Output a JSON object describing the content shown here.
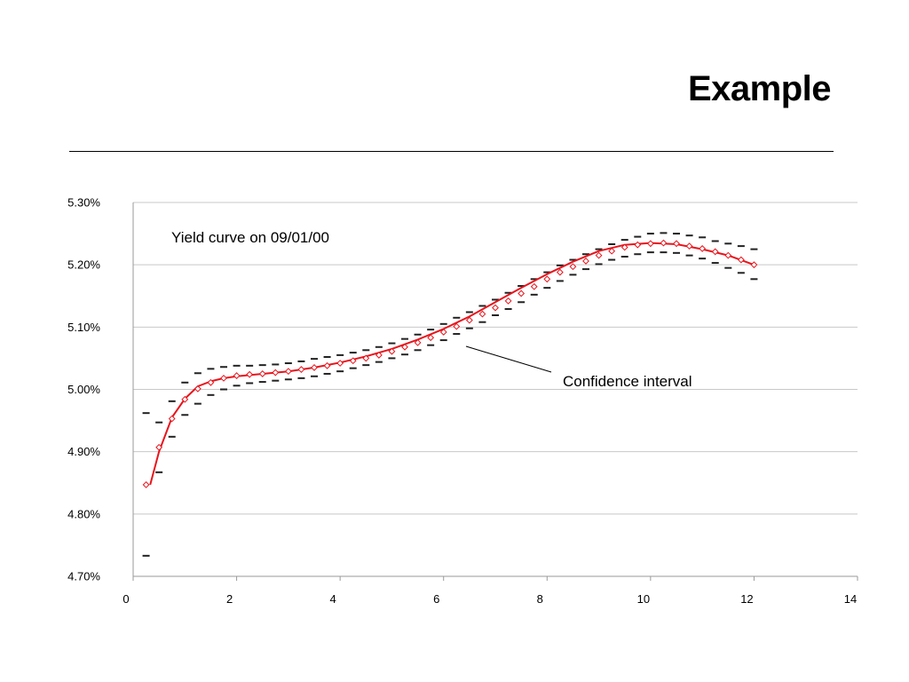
{
  "slide": {
    "title": "Example"
  },
  "chart_data": {
    "type": "scatter",
    "title": "",
    "xlabel": "",
    "ylabel": "",
    "xlim": [
      0,
      14
    ],
    "ylim": [
      4.7,
      5.3
    ],
    "x_ticks": [
      0,
      2,
      4,
      6,
      8,
      10,
      12,
      14
    ],
    "y_ticks": [
      4.7,
      4.8,
      4.9,
      5.0,
      5.1,
      5.2,
      5.3
    ],
    "y_tick_labels": [
      "4.70%",
      "4.80%",
      "4.90%",
      "5.00%",
      "5.10%",
      "5.20%",
      "5.30%"
    ],
    "grid": "horizontal",
    "annotations": {
      "curve_label": "Yield curve on 09/01/00",
      "interval_label": "Confidence interval"
    },
    "colors": {
      "fitted_curve": "#e8141c",
      "observed_points": "#e8141c",
      "bounds": "#222222",
      "grid": "#c8c8c8"
    },
    "series": [
      {
        "role": "fitted_curve",
        "x": [
          0.33,
          0.5,
          0.75,
          1.0,
          1.25,
          1.5,
          1.75,
          2.0,
          2.5,
          3.0,
          3.5,
          4.0,
          4.5,
          5.0,
          5.5,
          6.0,
          6.5,
          7.0,
          7.5,
          8.0,
          8.5,
          9.0,
          9.5,
          10.0,
          10.5,
          11.0,
          11.5,
          12.0
        ],
        "y": [
          4.847,
          4.9,
          4.955,
          4.985,
          5.005,
          5.013,
          5.018,
          5.021,
          5.025,
          5.029,
          5.035,
          5.043,
          5.053,
          5.065,
          5.08,
          5.097,
          5.117,
          5.14,
          5.163,
          5.185,
          5.205,
          5.222,
          5.232,
          5.235,
          5.233,
          5.225,
          5.215,
          5.2
        ]
      },
      {
        "role": "observed_points",
        "x": [
          0.25,
          0.5,
          0.75,
          1.0,
          1.25,
          1.5,
          1.75,
          2.0,
          2.25,
          2.5,
          2.75,
          3.0,
          3.25,
          3.5,
          3.75,
          4.0,
          4.25,
          4.5,
          4.75,
          5.0,
          5.25,
          5.5,
          5.75,
          6.0,
          6.25,
          6.5,
          6.75,
          7.0,
          7.25,
          7.5,
          7.75,
          8.0,
          8.25,
          8.5,
          8.75,
          9.0,
          9.25,
          9.5,
          9.75,
          10.0,
          10.25,
          10.5,
          10.75,
          11.0,
          11.25,
          11.5,
          11.75,
          12.0
        ],
        "y": [
          4.847,
          4.907,
          4.953,
          4.984,
          5.001,
          5.011,
          5.018,
          5.022,
          5.024,
          5.025,
          5.027,
          5.029,
          5.032,
          5.035,
          5.038,
          5.042,
          5.046,
          5.05,
          5.055,
          5.061,
          5.068,
          5.075,
          5.083,
          5.092,
          5.101,
          5.111,
          5.121,
          5.131,
          5.142,
          5.154,
          5.165,
          5.177,
          5.188,
          5.197,
          5.206,
          5.215,
          5.222,
          5.228,
          5.232,
          5.234,
          5.235,
          5.234,
          5.23,
          5.226,
          5.221,
          5.215,
          5.208,
          5.2
        ]
      },
      {
        "role": "upper_bound",
        "x": [
          0.25,
          0.5,
          0.75,
          1.0,
          1.25,
          1.5,
          1.75,
          2.0,
          2.25,
          2.5,
          2.75,
          3.0,
          3.25,
          3.5,
          3.75,
          4.0,
          4.25,
          4.5,
          4.75,
          5.0,
          5.25,
          5.5,
          5.75,
          6.0,
          6.25,
          6.5,
          6.75,
          7.0,
          7.25,
          7.5,
          7.75,
          8.0,
          8.25,
          8.5,
          8.75,
          9.0,
          9.25,
          9.5,
          9.75,
          10.0,
          10.25,
          10.5,
          10.75,
          11.0,
          11.25,
          11.5,
          11.75,
          12.0
        ],
        "y": [
          4.962,
          4.947,
          4.981,
          5.011,
          5.026,
          5.033,
          5.036,
          5.038,
          5.038,
          5.039,
          5.04,
          5.042,
          5.045,
          5.049,
          5.052,
          5.055,
          5.059,
          5.063,
          5.068,
          5.074,
          5.081,
          5.088,
          5.096,
          5.105,
          5.115,
          5.124,
          5.134,
          5.144,
          5.155,
          5.166,
          5.177,
          5.188,
          5.199,
          5.208,
          5.217,
          5.225,
          5.233,
          5.24,
          5.245,
          5.25,
          5.251,
          5.25,
          5.247,
          5.244,
          5.238,
          5.234,
          5.23,
          5.225
        ]
      },
      {
        "role": "lower_bound",
        "x": [
          0.25,
          0.5,
          0.75,
          1.0,
          1.25,
          1.5,
          1.75,
          2.0,
          2.25,
          2.5,
          2.75,
          3.0,
          3.25,
          3.5,
          3.75,
          4.0,
          4.25,
          4.5,
          4.75,
          5.0,
          5.25,
          5.5,
          5.75,
          6.0,
          6.25,
          6.5,
          6.75,
          7.0,
          7.25,
          7.5,
          7.75,
          8.0,
          8.25,
          8.5,
          8.75,
          9.0,
          9.25,
          9.5,
          9.75,
          10.0,
          10.25,
          10.5,
          10.75,
          11.0,
          11.25,
          11.5,
          11.75,
          12.0
        ],
        "y": [
          4.733,
          4.867,
          4.924,
          4.959,
          4.977,
          4.991,
          5.0,
          5.006,
          5.01,
          5.012,
          5.014,
          5.016,
          5.018,
          5.021,
          5.025,
          5.029,
          5.034,
          5.039,
          5.044,
          5.05,
          5.056,
          5.063,
          5.071,
          5.079,
          5.089,
          5.098,
          5.108,
          5.119,
          5.129,
          5.14,
          5.152,
          5.163,
          5.174,
          5.184,
          5.193,
          5.201,
          5.208,
          5.213,
          5.217,
          5.22,
          5.22,
          5.219,
          5.215,
          5.21,
          5.203,
          5.195,
          5.187,
          5.177
        ]
      }
    ]
  }
}
